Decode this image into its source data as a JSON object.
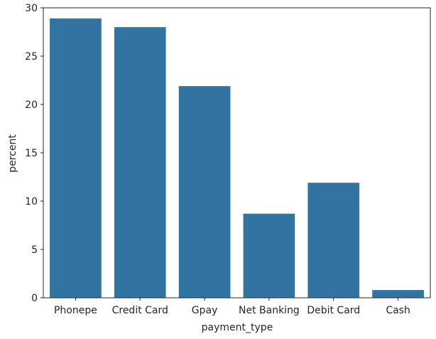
{
  "chart_data": {
    "type": "bar",
    "title": "",
    "xlabel": "payment_type",
    "ylabel": "percent",
    "categories": [
      "Phonepe",
      "Credit Card",
      "Gpay",
      "Net Banking",
      "Debit Card",
      "Cash"
    ],
    "values": [
      28.9,
      28.0,
      21.9,
      8.7,
      11.9,
      0.8
    ],
    "ylim": [
      0,
      30
    ],
    "yticks": [
      0,
      5,
      10,
      15,
      20,
      25,
      30
    ],
    "grid": false,
    "bar_color": "#3274a1"
  }
}
